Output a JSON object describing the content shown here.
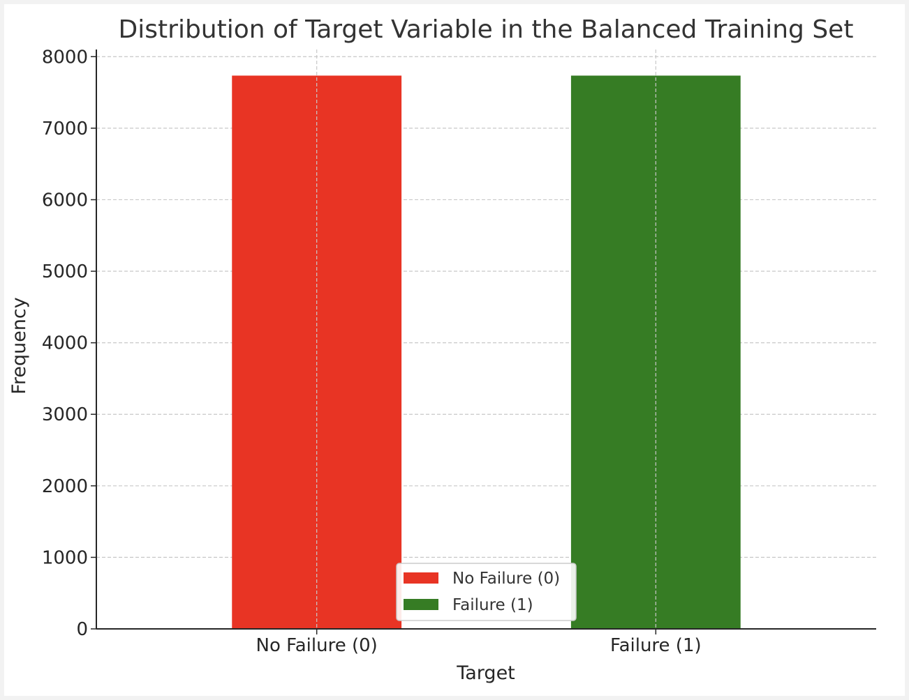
{
  "chart_data": {
    "type": "bar",
    "title": "Distribution of Target Variable in the Balanced Training Set",
    "xlabel": "Target",
    "ylabel": "Frequency",
    "categories": [
      "No Failure (0)",
      "Failure (1)"
    ],
    "values": [
      7735,
      7735
    ],
    "colors": [
      "#e83424",
      "#367c24"
    ],
    "ylim": [
      0,
      8100
    ],
    "yticks": [
      0,
      1000,
      2000,
      3000,
      4000,
      5000,
      6000,
      7000,
      8000
    ],
    "grid": true,
    "legend": {
      "placement": "lower-center",
      "entries": [
        {
          "label": "No Failure (0)",
          "color": "#e83424"
        },
        {
          "label": "Failure (1)",
          "color": "#367c24"
        }
      ]
    }
  }
}
